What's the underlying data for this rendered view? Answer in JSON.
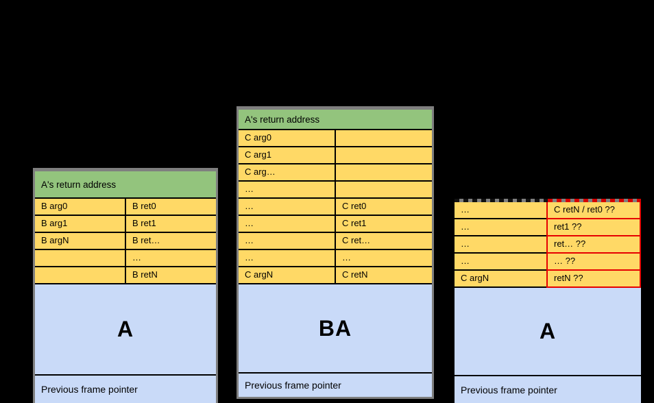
{
  "colors": {
    "background": "#000000",
    "return_address_green": "#93c47d",
    "slot_yellow": "#ffd966",
    "frame_blue": "#c9daf8",
    "table_border_gray": "#7f7f7f",
    "clobbered_red": "#e60000"
  },
  "diagram": {
    "stacks": [
      {
        "name": "stack-b-frame",
        "header": "A's return address",
        "rows": [
          {
            "left": "B arg0",
            "right": "B ret0"
          },
          {
            "left": "B arg1",
            "right": "B ret1"
          },
          {
            "left": "B argN",
            "right": "B ret…"
          },
          {
            "left": "",
            "right": "…"
          },
          {
            "left": "",
            "right": "B retN"
          }
        ],
        "frame_label": "A",
        "footer": "Previous frame pointer"
      },
      {
        "name": "stack-c-frame",
        "header": "A's return address",
        "rows": [
          {
            "left": "C arg0",
            "right": ""
          },
          {
            "left": "C arg1",
            "right": ""
          },
          {
            "left": "C arg…",
            "right": ""
          },
          {
            "left": "…",
            "right": ""
          },
          {
            "left": "…",
            "right": "C ret0"
          },
          {
            "left": "…",
            "right": "C ret1"
          },
          {
            "left": "…",
            "right": "C ret…"
          },
          {
            "left": "…",
            "right": "…"
          },
          {
            "left": "C argN",
            "right": "C retN"
          }
        ],
        "frame_label": "BA",
        "footer": "Previous frame pointer"
      },
      {
        "name": "stack-clobbered-frame",
        "rows": [
          {
            "left": "…",
            "right": "C retN / ret0 ??"
          },
          {
            "left": "…",
            "right": "ret1 ??"
          },
          {
            "left": "…",
            "right": "ret… ??"
          },
          {
            "left": "…",
            "right": "… ??"
          },
          {
            "left": "C argN",
            "right": "retN ??"
          }
        ],
        "frame_label": "A",
        "footer": "Previous frame pointer"
      }
    ]
  }
}
